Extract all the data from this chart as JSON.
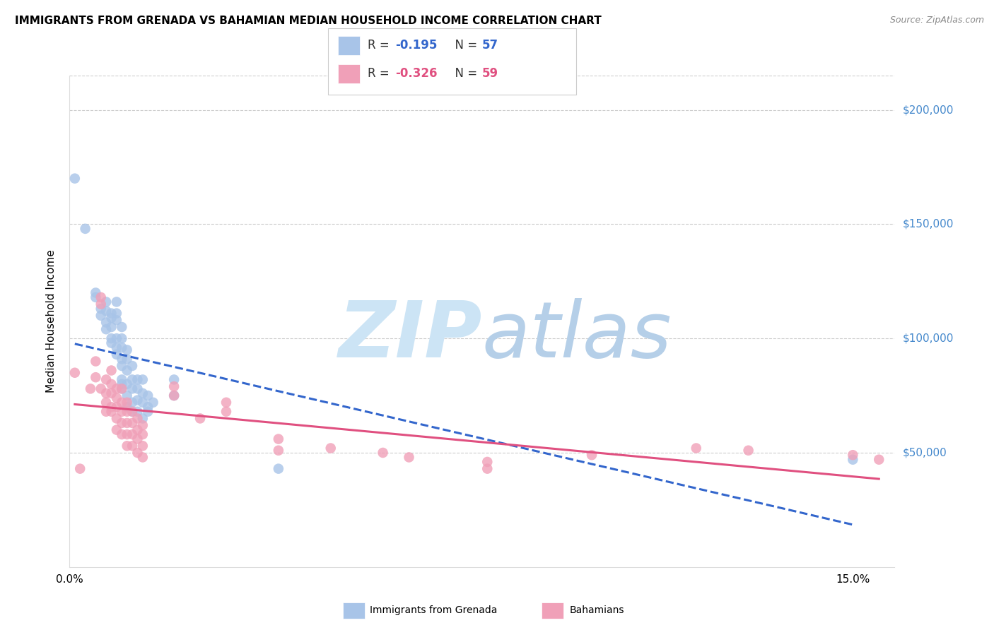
{
  "title": "IMMIGRANTS FROM GRENADA VS BAHAMIAN MEDIAN HOUSEHOLD INCOME CORRELATION CHART",
  "source": "Source: ZipAtlas.com",
  "ylabel": "Median Household Income",
  "ytick_values": [
    50000,
    100000,
    150000,
    200000
  ],
  "ylim": [
    0,
    215000
  ],
  "xlim": [
    0.0,
    0.158
  ],
  "blue_scatter": [
    [
      0.001,
      170000
    ],
    [
      0.003,
      148000
    ],
    [
      0.005,
      120000
    ],
    [
      0.005,
      118000
    ],
    [
      0.006,
      113000
    ],
    [
      0.006,
      110000
    ],
    [
      0.007,
      116000
    ],
    [
      0.007,
      112000
    ],
    [
      0.007,
      107000
    ],
    [
      0.007,
      104000
    ],
    [
      0.008,
      111000
    ],
    [
      0.008,
      109000
    ],
    [
      0.008,
      105000
    ],
    [
      0.008,
      100000
    ],
    [
      0.008,
      98000
    ],
    [
      0.009,
      116000
    ],
    [
      0.009,
      111000
    ],
    [
      0.009,
      108000
    ],
    [
      0.009,
      100000
    ],
    [
      0.009,
      96000
    ],
    [
      0.009,
      93000
    ],
    [
      0.01,
      105000
    ],
    [
      0.01,
      100000
    ],
    [
      0.01,
      96000
    ],
    [
      0.01,
      91000
    ],
    [
      0.01,
      88000
    ],
    [
      0.01,
      82000
    ],
    [
      0.01,
      80000
    ],
    [
      0.01,
      78000
    ],
    [
      0.011,
      95000
    ],
    [
      0.011,
      91000
    ],
    [
      0.011,
      86000
    ],
    [
      0.011,
      80000
    ],
    [
      0.011,
      75000
    ],
    [
      0.011,
      70000
    ],
    [
      0.012,
      88000
    ],
    [
      0.012,
      82000
    ],
    [
      0.012,
      78000
    ],
    [
      0.012,
      72000
    ],
    [
      0.012,
      68000
    ],
    [
      0.013,
      82000
    ],
    [
      0.013,
      78000
    ],
    [
      0.013,
      73000
    ],
    [
      0.013,
      68000
    ],
    [
      0.014,
      82000
    ],
    [
      0.014,
      76000
    ],
    [
      0.014,
      72000
    ],
    [
      0.014,
      65000
    ],
    [
      0.015,
      75000
    ],
    [
      0.015,
      70000
    ],
    [
      0.015,
      68000
    ],
    [
      0.016,
      72000
    ],
    [
      0.02,
      82000
    ],
    [
      0.02,
      75000
    ],
    [
      0.04,
      43000
    ],
    [
      0.15,
      47000
    ]
  ],
  "pink_scatter": [
    [
      0.001,
      85000
    ],
    [
      0.002,
      43000
    ],
    [
      0.004,
      78000
    ],
    [
      0.005,
      90000
    ],
    [
      0.005,
      83000
    ],
    [
      0.006,
      118000
    ],
    [
      0.006,
      115000
    ],
    [
      0.006,
      78000
    ],
    [
      0.007,
      82000
    ],
    [
      0.007,
      76000
    ],
    [
      0.007,
      72000
    ],
    [
      0.007,
      68000
    ],
    [
      0.008,
      86000
    ],
    [
      0.008,
      80000
    ],
    [
      0.008,
      76000
    ],
    [
      0.008,
      70000
    ],
    [
      0.008,
      68000
    ],
    [
      0.009,
      78000
    ],
    [
      0.009,
      74000
    ],
    [
      0.009,
      70000
    ],
    [
      0.009,
      65000
    ],
    [
      0.009,
      60000
    ],
    [
      0.01,
      78000
    ],
    [
      0.01,
      72000
    ],
    [
      0.01,
      68000
    ],
    [
      0.01,
      63000
    ],
    [
      0.01,
      58000
    ],
    [
      0.011,
      72000
    ],
    [
      0.011,
      68000
    ],
    [
      0.011,
      63000
    ],
    [
      0.011,
      58000
    ],
    [
      0.011,
      53000
    ],
    [
      0.012,
      68000
    ],
    [
      0.012,
      63000
    ],
    [
      0.012,
      58000
    ],
    [
      0.012,
      53000
    ],
    [
      0.013,
      65000
    ],
    [
      0.013,
      60000
    ],
    [
      0.013,
      56000
    ],
    [
      0.013,
      50000
    ],
    [
      0.014,
      62000
    ],
    [
      0.014,
      58000
    ],
    [
      0.014,
      53000
    ],
    [
      0.014,
      48000
    ],
    [
      0.02,
      79000
    ],
    [
      0.02,
      75000
    ],
    [
      0.025,
      65000
    ],
    [
      0.03,
      72000
    ],
    [
      0.03,
      68000
    ],
    [
      0.04,
      56000
    ],
    [
      0.04,
      51000
    ],
    [
      0.05,
      52000
    ],
    [
      0.06,
      50000
    ],
    [
      0.065,
      48000
    ],
    [
      0.08,
      46000
    ],
    [
      0.08,
      43000
    ],
    [
      0.1,
      49000
    ],
    [
      0.12,
      52000
    ],
    [
      0.13,
      51000
    ],
    [
      0.15,
      49000
    ],
    [
      0.155,
      47000
    ]
  ],
  "blue_line_color": "#3366cc",
  "pink_line_color": "#e05080",
  "blue_dot_color": "#a8c4e8",
  "pink_dot_color": "#f0a0b8",
  "watermark_zip_color": "#cce0f5",
  "watermark_atlas_color": "#b8d0e8",
  "grid_color": "#cccccc",
  "title_fontsize": 11,
  "axis_label_fontsize": 10,
  "tick_fontsize": 11,
  "source_fontsize": 9,
  "legend_r_color": "#3366cc",
  "legend_n_color": "#3366cc",
  "legend_text_color": "#333333"
}
